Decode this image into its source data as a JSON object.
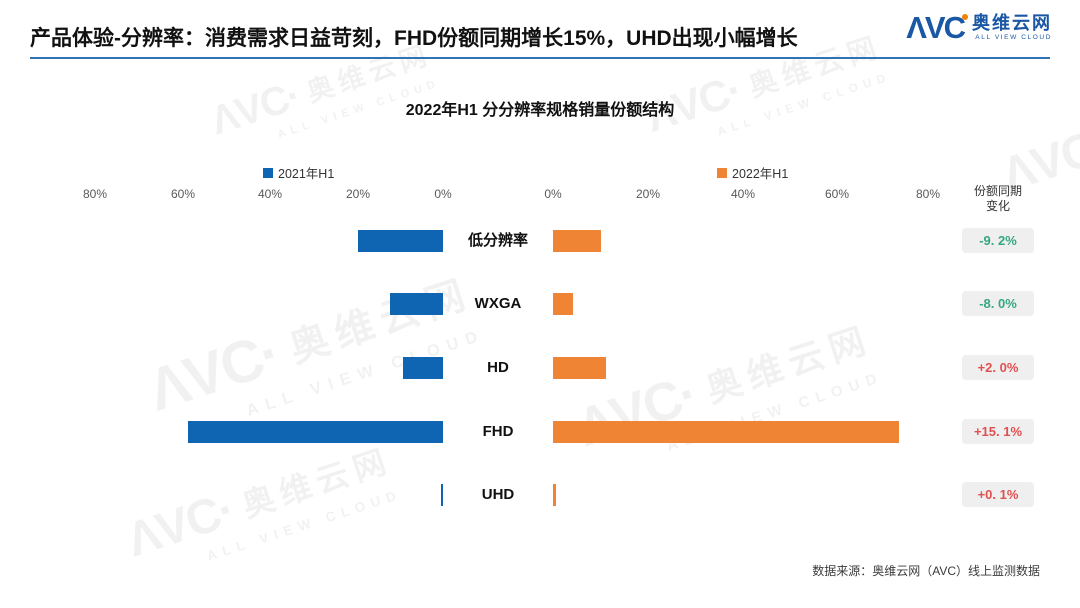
{
  "header": {
    "title": "产品体验-分辨率：消费需求日益苛刻，FHD份额同期增长15%，UHD出现小幅增长",
    "logo": {
      "name": "avc-logo",
      "mark": "ΛVC",
      "cn": "奥维云网",
      "en": "ALL VIEW CLOUD"
    },
    "accent_color": "#2e74b5"
  },
  "chart_data": {
    "type": "bar",
    "variant": "tornado",
    "title": "2022年H1  分分辨率规格销量份额结构",
    "categories": [
      "低分辨率",
      "WXGA",
      "HD",
      "FHD",
      "UHD"
    ],
    "series": [
      {
        "name": "2021年H1",
        "color": "#1065b2",
        "values": [
          19.5,
          12.2,
          9.2,
          58.6,
          0.5
        ]
      },
      {
        "name": "2022年H1",
        "color": "#ee8434",
        "values": [
          10.3,
          4.2,
          11.2,
          73.7,
          0.6
        ]
      }
    ],
    "changes": [
      {
        "value": -9.2,
        "text": "-9. 2%",
        "color": "#35a87d"
      },
      {
        "value": -8.0,
        "text": "-8. 0%",
        "color": "#35a87d"
      },
      {
        "value": 2.0,
        "text": "+2. 0%",
        "color": "#e05050"
      },
      {
        "value": 15.1,
        "text": "+15. 1%",
        "color": "#e05050"
      },
      {
        "value": 0.1,
        "text": "+0. 1%",
        "color": "#e05050"
      }
    ],
    "change_header": [
      "份额同期",
      "变化"
    ],
    "x_axis": {
      "left_ticks": [
        "80%",
        "60%",
        "40%",
        "20%",
        "0%"
      ],
      "right_ticks": [
        "0%",
        "20%",
        "40%",
        "60%",
        "80%"
      ],
      "max": 80,
      "unit": "%"
    },
    "legend_position": "top",
    "grid": false,
    "badge_bg": "#efefef"
  },
  "watermark": {
    "mark": "ΛVC·",
    "cn": "奥维云网",
    "en": "ALL VIEW CLOUD"
  },
  "footer": {
    "source": "数据来源：奥维云网（AVC）线上监测数据"
  }
}
